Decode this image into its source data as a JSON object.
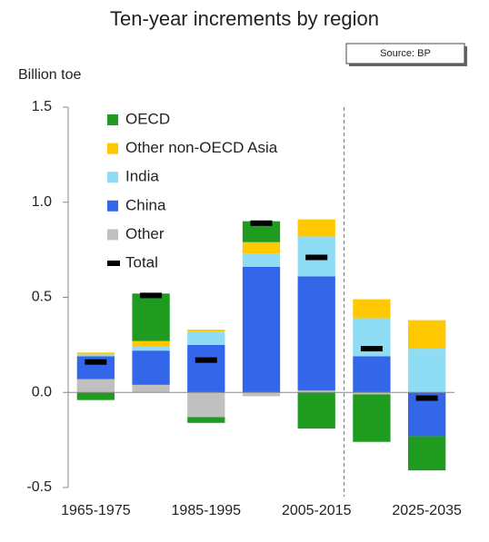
{
  "chart_data": {
    "type": "stacked-bar",
    "title": "Ten-year increments by region",
    "source": "Source: BP",
    "y_label": "Billion toe",
    "categories": [
      "1965-1975",
      null,
      "1985-1995",
      null,
      "2005-2015",
      null,
      "2025-2035"
    ],
    "series": [
      {
        "name": "OECD",
        "color": "#1f9c1f",
        "values": [
          -0.04,
          0.25,
          -0.03,
          0.11,
          -0.19,
          -0.25,
          -0.18
        ]
      },
      {
        "name": "Other non-OECD Asia",
        "color": "#ffc800",
        "values": [
          0.01,
          0.03,
          0.01,
          0.06,
          0.09,
          0.1,
          0.15
        ]
      },
      {
        "name": "India",
        "color": "#8fdcf5",
        "values": [
          0.01,
          0.02,
          0.07,
          0.07,
          0.21,
          0.2,
          0.23
        ]
      },
      {
        "name": "China",
        "color": "#3366e8",
        "values": [
          0.12,
          0.18,
          0.25,
          0.66,
          0.6,
          0.19,
          -0.23
        ]
      },
      {
        "name": "Other",
        "color": "#c0c0c0",
        "values": [
          0.07,
          0.04,
          -0.13,
          -0.02,
          0.01,
          -0.01,
          0
        ]
      }
    ],
    "total": {
      "name": "Total",
      "color": "#000000",
      "values": [
        0.16,
        0.51,
        0.17,
        0.89,
        0.71,
        0.23,
        -0.03
      ]
    },
    "ylim": [
      -0.5,
      1.5
    ],
    "yticks": [
      {
        "value": 1.5,
        "label": "1.5"
      },
      {
        "value": 1,
        "label": "1.0"
      },
      {
        "value": 0.5,
        "label": "0.5"
      },
      {
        "value": 0,
        "label": "0.0"
      },
      {
        "value": -0.5,
        "label": "-0.5"
      }
    ],
    "divider_after": 5
  }
}
